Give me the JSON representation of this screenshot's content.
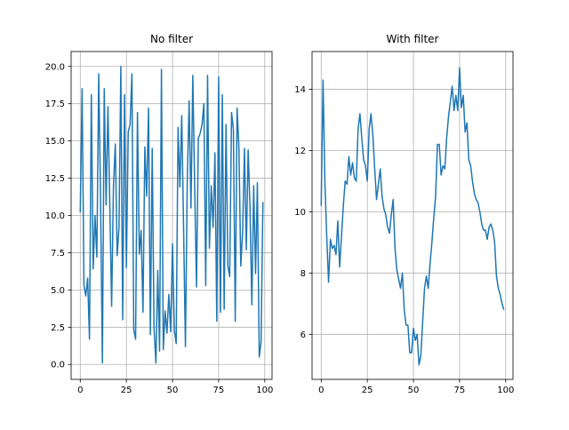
{
  "chart_data": [
    {
      "type": "line",
      "title": "No filter",
      "xlabel": "",
      "ylabel": "",
      "grid": true,
      "color": "#1f77b4",
      "xlim": [
        -4.95,
        103.95
      ],
      "ylim": [
        -1.0,
        21.0
      ],
      "x_ticks": [
        0,
        25,
        50,
        75,
        100
      ],
      "x_tick_labels": [
        "0",
        "25",
        "50",
        "75",
        "100"
      ],
      "y_ticks": [
        0,
        2.5,
        5,
        7.5,
        10,
        12.5,
        15,
        17.5,
        20
      ],
      "y_tick_labels": [
        "0.0",
        "2.5",
        "5.0",
        "7.5",
        "10.0",
        "12.5",
        "15.0",
        "17.5",
        "20.0"
      ],
      "x": [
        0,
        1,
        2,
        3,
        4,
        5,
        6,
        7,
        8,
        9,
        10,
        11,
        12,
        13,
        14,
        15,
        16,
        17,
        18,
        19,
        20,
        21,
        22,
        23,
        24,
        25,
        26,
        27,
        28,
        29,
        30,
        31,
        32,
        33,
        34,
        35,
        36,
        37,
        38,
        39,
        40,
        41,
        42,
        43,
        44,
        45,
        46,
        47,
        48,
        49,
        50,
        51,
        52,
        53,
        54,
        55,
        56,
        57,
        58,
        59,
        60,
        61,
        62,
        63,
        64,
        65,
        66,
        67,
        68,
        69,
        70,
        71,
        72,
        73,
        74,
        75,
        76,
        77,
        78,
        79,
        80,
        81,
        82,
        83,
        84,
        85,
        86,
        87,
        88,
        89,
        90,
        91,
        92,
        93,
        94,
        95,
        96,
        97,
        98,
        99
      ],
      "values": [
        10.2,
        18.5,
        5.3,
        4.6,
        5.8,
        1.7,
        18.1,
        6.4,
        10.0,
        7.2,
        19.5,
        11.2,
        0.1,
        18.5,
        10.7,
        17.3,
        10.8,
        3.9,
        12.0,
        14.8,
        7.3,
        9.2,
        20.0,
        3.0,
        18.1,
        6.5,
        15.6,
        16.1,
        19.5,
        2.3,
        1.7,
        16.9,
        7.4,
        9.0,
        3.5,
        14.6,
        11.3,
        17.2,
        2.0,
        14.5,
        2.4,
        0.1,
        6.3,
        0.9,
        19.8,
        1.0,
        3.6,
        2.1,
        4.7,
        2.2,
        8.1,
        2.3,
        1.4,
        15.9,
        11.9,
        16.7,
        9.2,
        1.2,
        12.3,
        17.7,
        10.5,
        19.4,
        12.0,
        5.2,
        15.2,
        15.5,
        16.1,
        17.5,
        5.3,
        19.4,
        7.8,
        12.0,
        9.2,
        14.2,
        2.9,
        19.3,
        3.5,
        18.1,
        3.7,
        16.1,
        6.6,
        5.9,
        16.9,
        15.8,
        2.9,
        17.2,
        14.5,
        6.6,
        8.9,
        14.5,
        7.7,
        14.4,
        10.5,
        4.0,
        12.0,
        6.1,
        12.2,
        0.5,
        1.5,
        10.9
      ]
    },
    {
      "type": "line",
      "title": "With filter",
      "xlabel": "",
      "ylabel": "",
      "grid": true,
      "color": "#1f77b4",
      "xlim": [
        -4.95,
        103.95
      ],
      "ylim": [
        4.53,
        15.23
      ],
      "x_ticks": [
        0,
        25,
        50,
        75,
        100
      ],
      "x_tick_labels": [
        "0",
        "25",
        "50",
        "75",
        "100"
      ],
      "y_ticks": [
        6,
        8,
        10,
        12,
        14
      ],
      "y_tick_labels": [
        "6",
        "8",
        "10",
        "12",
        "14"
      ],
      "x": [
        0,
        1,
        2,
        3,
        4,
        5,
        6,
        7,
        8,
        9,
        10,
        11,
        12,
        13,
        14,
        15,
        16,
        17,
        18,
        19,
        20,
        21,
        22,
        23,
        24,
        25,
        26,
        27,
        28,
        29,
        30,
        31,
        32,
        33,
        34,
        35,
        36,
        37,
        38,
        39,
        40,
        41,
        42,
        43,
        44,
        45,
        46,
        47,
        48,
        49,
        50,
        51,
        52,
        53,
        54,
        55,
        56,
        57,
        58,
        59,
        60,
        61,
        62,
        63,
        64,
        65,
        66,
        67,
        68,
        69,
        70,
        71,
        72,
        73,
        74,
        75,
        76,
        77,
        78,
        79,
        80,
        81,
        82,
        83,
        84,
        85,
        86,
        87,
        88,
        89,
        90,
        91,
        92,
        93,
        94,
        95,
        96,
        97,
        98,
        99
      ],
      "values": [
        10.2,
        14.3,
        11.0,
        9.2,
        7.7,
        9.1,
        8.8,
        8.9,
        8.6,
        9.7,
        8.2,
        9.2,
        10.2,
        11.0,
        10.9,
        11.8,
        11.2,
        11.6,
        11.1,
        11.0,
        12.7,
        13.2,
        12.4,
        11.7,
        11.5,
        11.0,
        12.7,
        13.2,
        12.5,
        11.4,
        10.4,
        10.9,
        11.4,
        10.5,
        10.1,
        9.9,
        9.5,
        9.3,
        9.9,
        10.4,
        8.8,
        8.1,
        7.8,
        7.5,
        8.0,
        6.8,
        6.3,
        6.3,
        5.4,
        5.4,
        6.2,
        5.8,
        6.0,
        5.0,
        5.3,
        6.4,
        7.5,
        7.9,
        7.5,
        8.3,
        9.0,
        9.8,
        10.5,
        12.2,
        12.2,
        11.2,
        11.5,
        11.4,
        12.4,
        13.1,
        13.6,
        14.1,
        13.3,
        13.8,
        13.3,
        14.7,
        13.4,
        13.8,
        12.6,
        12.9,
        11.7,
        11.5,
        11.0,
        10.6,
        10.4,
        10.3,
        10.0,
        9.6,
        9.4,
        9.4,
        9.1,
        9.5,
        9.6,
        9.4,
        9.0,
        7.9,
        7.5,
        7.3,
        7.0,
        6.8
      ]
    }
  ]
}
